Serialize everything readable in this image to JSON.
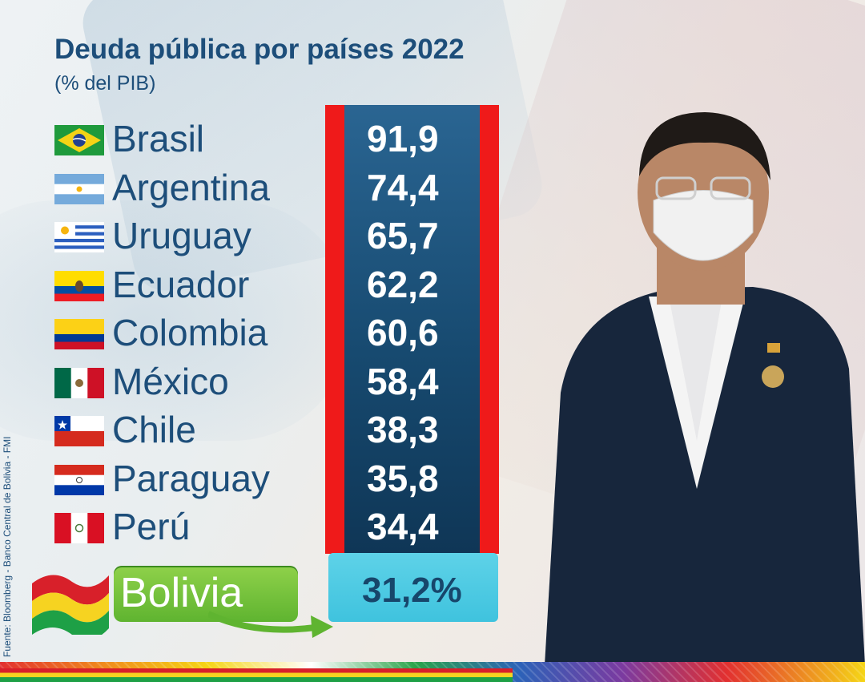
{
  "chart_data": {
    "type": "table",
    "title": "Deuda pública por países 2022",
    "subtitle": "(% del PIB)",
    "categories": [
      "Brasil",
      "Argentina",
      "Uruguay",
      "Ecuador",
      "Colombia",
      "México",
      "Chile",
      "Paraguay",
      "Perú"
    ],
    "values": [
      "91,9",
      "74,4",
      "65,7",
      "62,2",
      "60,6",
      "58,4",
      "38,3",
      "35,8",
      "34,4"
    ],
    "highlight": {
      "label": "Bolivia",
      "value": "31,2%"
    },
    "source": "Fuente: Bloomberg - Banco Central de Bolivia - FMI"
  },
  "icons": [
    "brazil-flag-icon",
    "argentina-flag-icon",
    "uruguay-flag-icon",
    "ecuador-flag-icon",
    "colombia-flag-icon",
    "mexico-flag-icon",
    "chile-flag-icon",
    "paraguay-flag-icon",
    "peru-flag-icon",
    "bolivia-flag-icon"
  ],
  "colors": {
    "title": "#1d4e7a",
    "column": "#1c5077",
    "border": "#ef1a1a",
    "highlight_box": "#4fcbe4",
    "label_box": "#74c23c"
  }
}
